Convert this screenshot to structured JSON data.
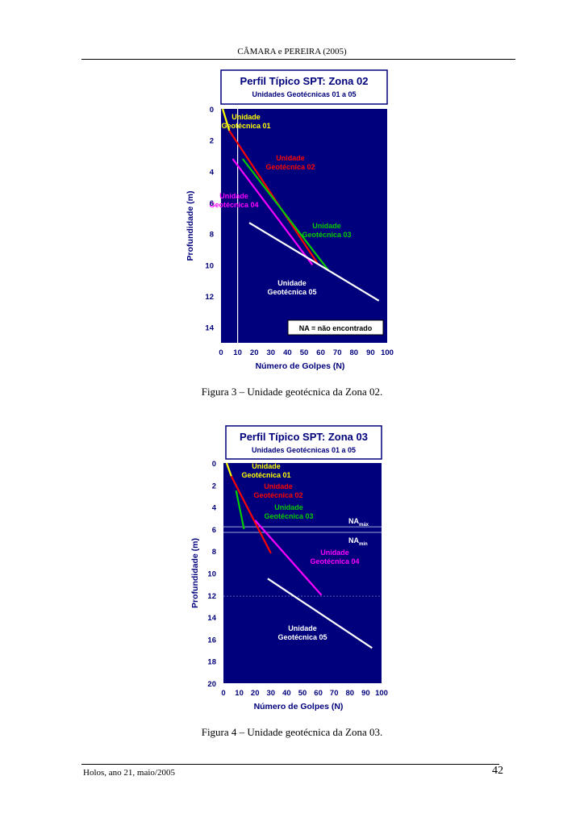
{
  "page": {
    "header": "CÂMARA e PEREIRA (2005)",
    "footer_left": "Holos, ano 21, maio/2005",
    "page_number": "42",
    "figure3_caption": "Figura 3 – Unidade geotécnica da Zona 02.",
    "figure4_caption": "Figura 4 – Unidade geotécnica da Zona 03."
  },
  "colors": {
    "plot_bg": "#00007c",
    "title_border": "#00007c",
    "title_text": "#00007c",
    "yellow": "#ffff00",
    "red": "#ff0000",
    "green": "#00cc00",
    "magenta": "#ff00ff",
    "white": "#ffffff"
  },
  "chart_data": [
    {
      "type": "line",
      "title": "Perfil Típico SPT: Zona 02",
      "subtitle": "Unidades Geotécnicas 01 a 05",
      "xlabel": "Número de Golpes (N)",
      "ylabel": "Profundidade (m)",
      "xlim": [
        0,
        100
      ],
      "ylim": [
        0,
        15
      ],
      "y_inverted": true,
      "x_ticks": [
        "0",
        "10",
        "20",
        "30",
        "40",
        "50",
        "60",
        "70",
        "80",
        "90",
        "100"
      ],
      "y_ticks": [
        "0",
        "2",
        "4",
        "6",
        "8",
        "10",
        "12",
        "14"
      ],
      "series": [
        {
          "name": "Unidade Geotécnica 01",
          "label_lines": [
            "Unidade",
            "Geotécnica 01"
          ],
          "color": "#ffff00",
          "x": [
            1,
            5
          ],
          "y": [
            0,
            1.4
          ]
        },
        {
          "name": "Unidade Geotécnica 02",
          "label_lines": [
            "Unidade",
            "Geotécnica 02"
          ],
          "color": "#ff0000",
          "x": [
            5,
            58
          ],
          "y": [
            1.4,
            9.9
          ]
        },
        {
          "name": "Unidade Geotécnica 03",
          "label_lines": [
            "Unidade",
            "Geotécnica 03"
          ],
          "color": "#00cc00",
          "x": [
            13,
            65
          ],
          "y": [
            3.2,
            10.4
          ]
        },
        {
          "name": "Unidade Geotécnica 04",
          "label_lines": [
            "Unidade",
            "Geotécnica 04"
          ],
          "color": "#ff00ff",
          "x": [
            7,
            55
          ],
          "y": [
            3.2,
            10.0
          ]
        },
        {
          "name": "Unidade Geotécnica 05",
          "label_lines": [
            "Unidade",
            "Geotécnica 05"
          ],
          "color": "#ffffff",
          "x": [
            17,
            95
          ],
          "y": [
            7.3,
            12.3
          ]
        }
      ],
      "water_level_N": 10,
      "annotation": "NA = não encontrado"
    },
    {
      "type": "line",
      "title": "Perfil Típico SPT: Zona 03",
      "subtitle": "Unidades Geotécnicas 01 a 05",
      "xlabel": "Número de Golpes (N)",
      "ylabel": "Profundidade (m)",
      "xlim": [
        0,
        100
      ],
      "ylim": [
        0,
        20
      ],
      "y_inverted": true,
      "x_ticks": [
        "0",
        "10",
        "20",
        "30",
        "40",
        "50",
        "60",
        "70",
        "80",
        "90",
        "100"
      ],
      "y_ticks": [
        "0",
        "2",
        "4",
        "6",
        "8",
        "10",
        "12",
        "14",
        "16",
        "18",
        "20"
      ],
      "series": [
        {
          "name": "Unidade Geotécnica 01",
          "label_lines": [
            "Unidade",
            "Geotécnica 01"
          ],
          "color": "#ffff00",
          "x": [
            2,
            5
          ],
          "y": [
            0,
            1.2
          ]
        },
        {
          "name": "Unidade Geotécnica 02",
          "label_lines": [
            "Unidade",
            "Geotécnica 02"
          ],
          "color": "#ff0000",
          "x": [
            5,
            30
          ],
          "y": [
            1.2,
            8.2
          ]
        },
        {
          "name": "Unidade Geotécnica 03",
          "label_lines": [
            "Unidade",
            "Geotécnica 03"
          ],
          "color": "#00cc00",
          "x": [
            8,
            13
          ],
          "y": [
            2.5,
            6.0
          ]
        },
        {
          "name": "Unidade Geotécnica 04",
          "label_lines": [
            "Unidade",
            "Geotécnica 04"
          ],
          "color": "#ff00ff",
          "x": [
            20,
            62
          ],
          "y": [
            5.2,
            12.0
          ]
        },
        {
          "name": "Unidade Geotécnica 05",
          "label_lines": [
            "Unidade",
            "Geotécnica 05"
          ],
          "color": "#ffffff",
          "x": [
            28,
            94
          ],
          "y": [
            10.5,
            16.8
          ]
        }
      ],
      "water_levels": [
        {
          "label": "NA",
          "sub": "máx",
          "depth": 5.8
        },
        {
          "label": "NA",
          "sub": "mín",
          "depth": 6.3
        }
      ],
      "dotted_line_depth": 12.1
    }
  ]
}
